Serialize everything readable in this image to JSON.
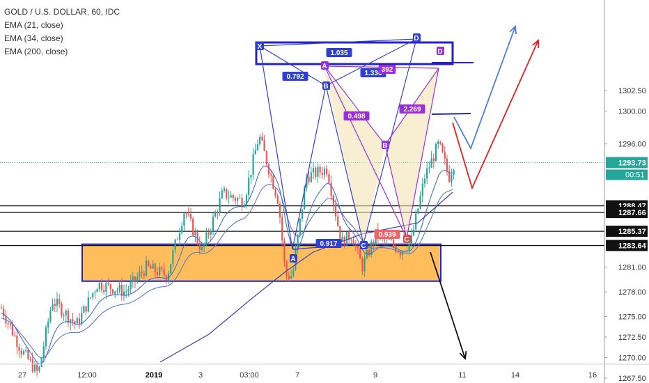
{
  "legend": {
    "symbol": "GOLD / U.S. DOLLAR, 60, IDC",
    "ema1": "EMA (21, close)",
    "ema2": "EMA (34, close)",
    "ema3": "EMA (200, close)"
  },
  "chart_data": {
    "type": "candlestick",
    "title": "GOLD / U.S. DOLLAR, 60, IDC",
    "ylim": [
      1267.5,
      1302.5
    ],
    "y_ticks": [
      1267.5,
      1270.0,
      1272.5,
      1275.0,
      1278.0,
      1281.0,
      1296.0,
      1300.0,
      1302.5
    ],
    "x_ticks": [
      "27",
      "12:00",
      "2019",
      "3",
      "03:00",
      "7",
      "9",
      "11",
      "14",
      "16"
    ],
    "price_labels": [
      {
        "value": 1293.73,
        "text": "1293.73",
        "color": "#26a69a",
        "text_color": "#ffffff"
      },
      {
        "value": 1288.47,
        "text": "1288.47",
        "color": "#111111",
        "text_color": "#ffffff"
      },
      {
        "value": 1287.66,
        "text": "1287.66",
        "color": "#111111",
        "text_color": "#ffffff"
      },
      {
        "value": 1285.37,
        "text": "1285.37",
        "color": "#111111",
        "text_color": "#ffffff"
      },
      {
        "value": 1283.64,
        "text": "1283.64",
        "color": "#111111",
        "text_color": "#ffffff"
      }
    ],
    "countdown": "00:51",
    "horizontal_lines": [
      1288.47,
      1287.66,
      1285.37,
      1283.64
    ],
    "support_zone": {
      "top": 1283.8,
      "bottom": 1279.3,
      "color": "#ff9800"
    },
    "pattern_points": [
      "X",
      "A",
      "B",
      "C",
      "D"
    ],
    "pattern_ratios": [
      "0.792",
      "1.035",
      "1.336",
      "0.917",
      "0.498",
      "0.939",
      "2.269",
      "392"
    ],
    "series": [
      {
        "name": "EMA (21, close)",
        "color": "#3f6fd1"
      },
      {
        "name": "EMA (34, close)",
        "color": "#5a7bbd"
      },
      {
        "name": "EMA (200, close)",
        "color": "#3d3db5"
      }
    ],
    "grid": false
  }
}
